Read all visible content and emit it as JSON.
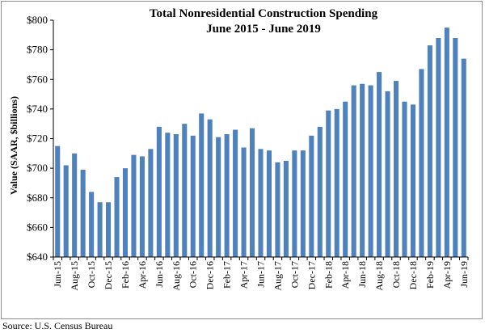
{
  "chart_data": {
    "type": "bar",
    "title": "Total Nonresidential Construction Spending",
    "subtitle": "June 2015 - June 2019",
    "ylabel": "Value (SAAR, $billions)",
    "xlabel": "",
    "ylim": [
      640,
      800
    ],
    "yticks": [
      "$640",
      "$660",
      "$680",
      "$700",
      "$720",
      "$740",
      "$760",
      "$780",
      "$800"
    ],
    "ytick_values": [
      640,
      660,
      680,
      700,
      720,
      740,
      760,
      780,
      800
    ],
    "legend": "none",
    "grid": false,
    "bar_color": "#4f81bd",
    "categories": [
      "Jun-15",
      "Jul-15",
      "Aug-15",
      "Sep-15",
      "Oct-15",
      "Nov-15",
      "Dec-15",
      "Jan-16",
      "Feb-16",
      "Mar-16",
      "Apr-16",
      "May-16",
      "Jun-16",
      "Jul-16",
      "Aug-16",
      "Sep-16",
      "Oct-16",
      "Nov-16",
      "Dec-16",
      "Jan-17",
      "Feb-17",
      "Mar-17",
      "Apr-17",
      "May-17",
      "Jun-17",
      "Jul-17",
      "Aug-17",
      "Sep-17",
      "Oct-17",
      "Nov-17",
      "Dec-17",
      "Jan-18",
      "Feb-18",
      "Mar-18",
      "Apr-18",
      "May-18",
      "Jun-18",
      "Jul-18",
      "Aug-18",
      "Sep-18",
      "Oct-18",
      "Nov-18",
      "Dec-18",
      "Jan-19",
      "Feb-19",
      "Mar-19",
      "Apr-19",
      "May-19",
      "Jun-19"
    ],
    "x_tick_labels": [
      "Jun-15",
      "Aug-15",
      "Oct-15",
      "Dec-15",
      "Feb-16",
      "Apr-16",
      "Jun-16",
      "Aug-16",
      "Oct-16",
      "Dec-16",
      "Feb-17",
      "Apr-17",
      "Jun-17",
      "Aug-17",
      "Oct-17",
      "Dec-17",
      "Feb-18",
      "Apr-18",
      "Jun-18",
      "Aug-18",
      "Oct-18",
      "Dec-18",
      "Feb-19",
      "Apr-19",
      "Jun-19"
    ],
    "values": [
      715,
      702,
      710,
      699,
      684,
      677,
      677,
      694,
      700,
      709,
      708,
      713,
      728,
      724,
      723,
      730,
      722,
      737,
      733,
      721,
      723,
      726,
      714,
      727,
      713,
      712,
      704,
      705,
      712,
      712,
      722,
      728,
      739,
      740,
      745,
      756,
      757,
      756,
      765,
      752,
      759,
      745,
      743,
      767,
      783,
      788,
      795,
      788,
      774
    ]
  },
  "source": "Source:  U.S. Census Bureau"
}
